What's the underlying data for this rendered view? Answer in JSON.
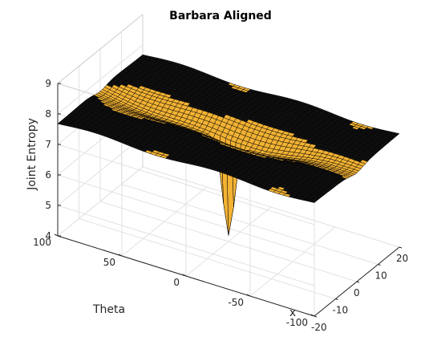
{
  "chart_data": {
    "type": "surface",
    "title": "Barbara Aligned",
    "xlabel": "x",
    "ylabel": "Theta",
    "zlabel": "Joint Entropy",
    "xlim": [
      -20,
      20
    ],
    "ylim": [
      -100,
      100
    ],
    "zlim": [
      4,
      9
    ],
    "x_ticks": [
      -20,
      -10,
      0,
      10,
      20
    ],
    "y_ticks": [
      -100,
      -50,
      0,
      50,
      100
    ],
    "z_ticks": [
      4,
      5,
      6,
      7,
      8,
      9
    ],
    "x_tick_labels": [
      "-20",
      "-10",
      "0",
      "10",
      "20"
    ],
    "y_tick_labels": [
      "-100",
      "-50",
      "0",
      "50",
      "100"
    ],
    "z_tick_labels": [
      "4",
      "5",
      "6",
      "7",
      "8",
      "9"
    ],
    "grid": true,
    "surface_color": "#f2b233",
    "edge_color": "#000000",
    "surface_model": {
      "plateau_value": 7.7,
      "valley_value": 7.25,
      "valley_axis": "x = 0",
      "valley_x_width": 3,
      "valley_theta_width": 60,
      "minimum": {
        "x": 0,
        "theta": 0,
        "value": 4.2
      }
    }
  }
}
